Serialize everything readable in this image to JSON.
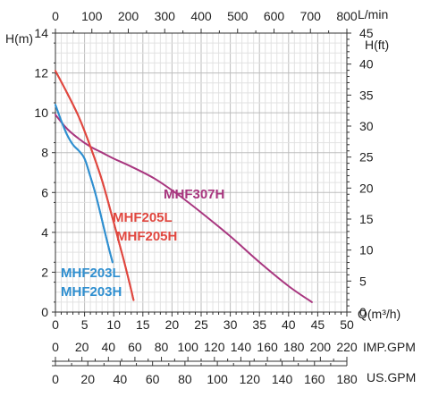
{
  "chart_data": {
    "type": "line",
    "axes": {
      "left": {
        "label": "H(m)",
        "min": 0,
        "max": 14,
        "ticks": [
          "0",
          "2",
          "4",
          "6",
          "8",
          "10",
          "12",
          "14"
        ]
      },
      "right": {
        "label": "H(ft)",
        "min": 0,
        "max": 45,
        "ticks": [
          "0",
          "5",
          "10",
          "15",
          "20",
          "25",
          "30",
          "35",
          "40",
          "45"
        ]
      },
      "top": {
        "label": "L/min",
        "min": 0,
        "max": 800,
        "ticks": [
          "0",
          "100",
          "200",
          "300",
          "400",
          "500",
          "600",
          "700",
          "800"
        ]
      },
      "bottom": {
        "label": "Q(m³/h)",
        "min": 0,
        "max": 50,
        "ticks": [
          "0",
          "5",
          "10",
          "15",
          "20",
          "25",
          "30",
          "35",
          "40",
          "45",
          "50"
        ]
      },
      "imp": {
        "label": "IMP.GPM",
        "min": 0,
        "max": 220,
        "ticks": [
          "0",
          "20",
          "40",
          "60",
          "80",
          "100",
          "120",
          "140",
          "160",
          "180",
          "200",
          "220"
        ]
      },
      "us": {
        "label": "US.GPM",
        "min": 0,
        "max": 180,
        "ticks": [
          "0",
          "20",
          "40",
          "60",
          "80",
          "100",
          "120",
          "140",
          "160",
          "180"
        ]
      }
    },
    "grid": true,
    "series": [
      {
        "name": "MHF307H",
        "color": "#a8367f",
        "x": [
          0,
          2,
          4,
          6,
          8,
          10,
          13,
          17,
          21,
          25,
          30,
          35,
          40,
          44
        ],
        "y": [
          9.9,
          9.2,
          8.7,
          8.3,
          8.0,
          7.7,
          7.3,
          6.7,
          5.9,
          5.0,
          3.8,
          2.5,
          1.3,
          0.5
        ]
      },
      {
        "name": "MHF205L",
        "color": "#e0473f",
        "x": [
          0,
          2,
          4,
          6,
          8,
          10,
          11,
          12,
          13,
          13.4
        ],
        "y": [
          12.1,
          11.0,
          9.8,
          8.3,
          6.6,
          4.5,
          3.4,
          2.3,
          1.1,
          0.6
        ]
      },
      {
        "name": "MHF205H",
        "color": "#e0473f",
        "x": [
          0,
          2,
          4,
          6,
          8,
          10,
          11,
          12,
          13,
          13.4
        ],
        "y": [
          12.1,
          11.0,
          9.8,
          8.3,
          6.6,
          4.5,
          3.4,
          2.3,
          1.1,
          0.6
        ]
      },
      {
        "name": "MHF203L",
        "color": "#2f8fd0",
        "x": [
          0,
          1,
          2,
          3,
          4,
          5,
          6,
          7,
          8,
          9,
          9.8
        ],
        "y": [
          10.4,
          9.6,
          8.9,
          8.4,
          8.1,
          7.7,
          6.8,
          5.8,
          4.6,
          3.4,
          2.5
        ]
      },
      {
        "name": "MHF203H",
        "color": "#2f8fd0",
        "x": [
          0,
          1,
          2,
          3,
          4,
          5,
          6,
          7,
          8,
          9,
          9.8
        ],
        "y": [
          10.4,
          9.6,
          8.9,
          8.4,
          8.1,
          7.7,
          6.8,
          5.8,
          4.6,
          3.4,
          2.5
        ]
      }
    ]
  }
}
